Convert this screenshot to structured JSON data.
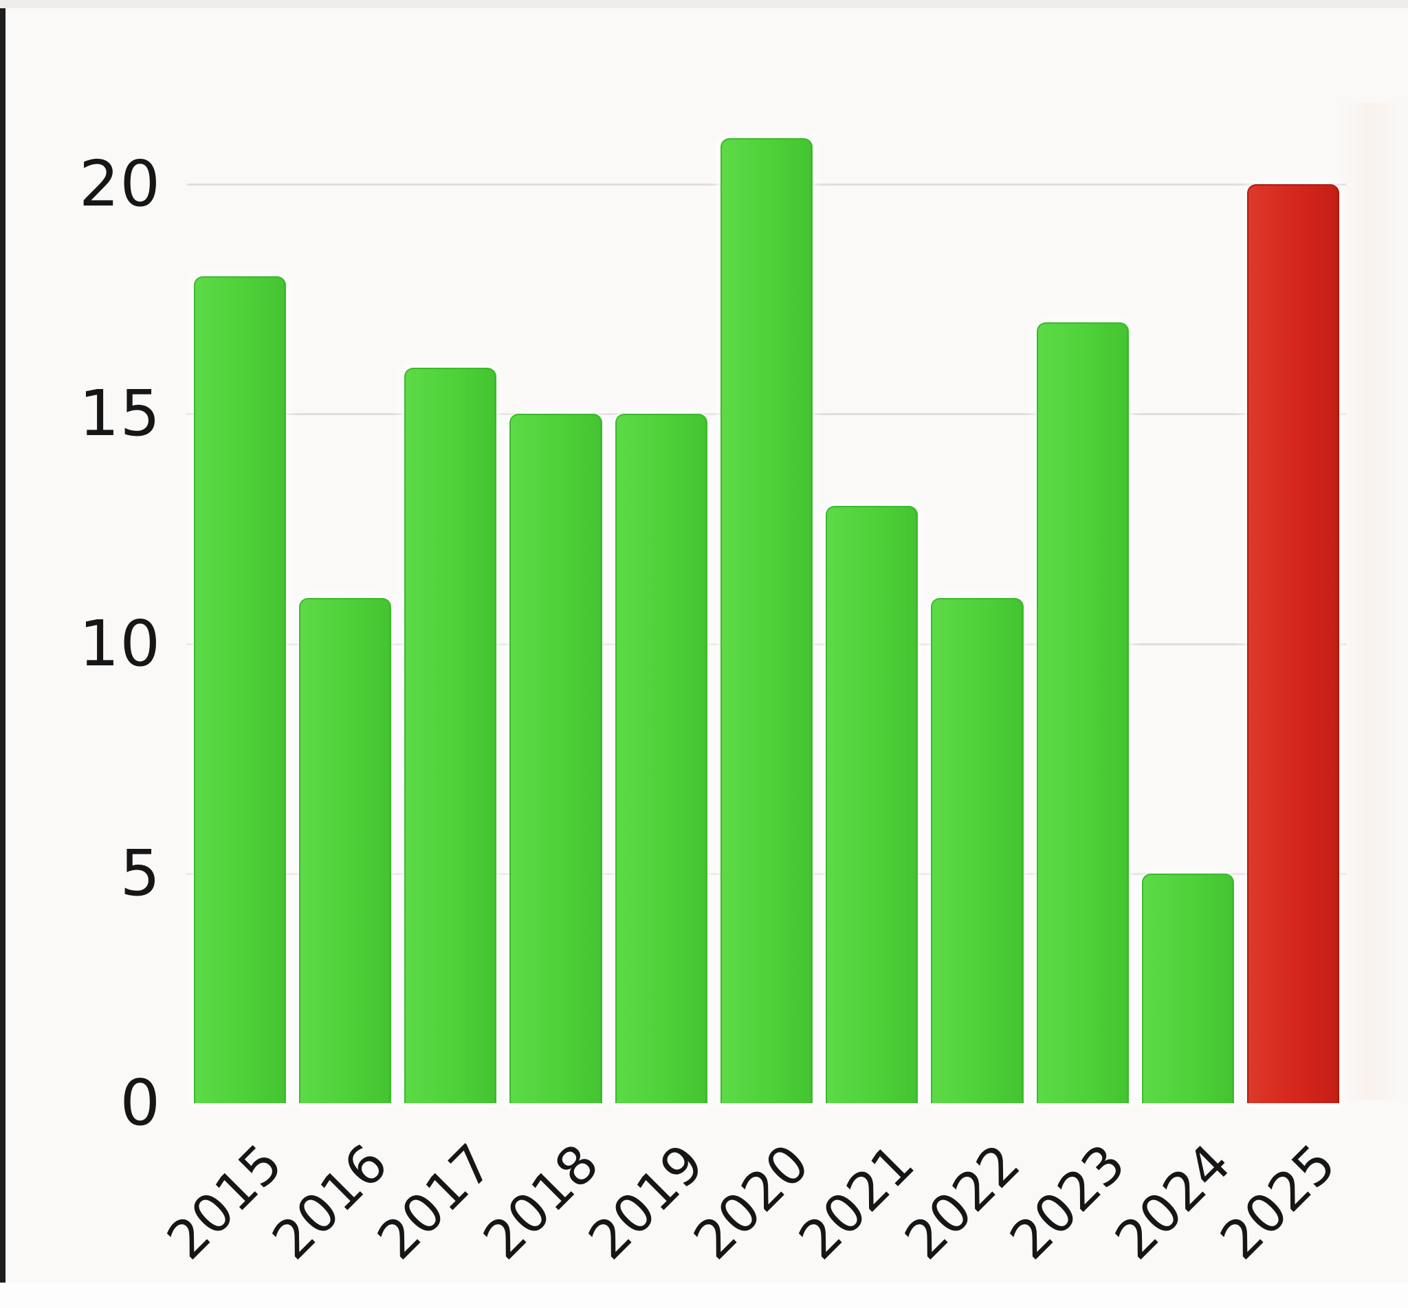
{
  "chart_data": {
    "type": "bar",
    "title": "",
    "xlabel": "",
    "ylabel": "",
    "categories": [
      "2015",
      "2016",
      "2017",
      "2018",
      "2019",
      "2020",
      "2021",
      "2022",
      "2023",
      "2024",
      "2025"
    ],
    "values": [
      18,
      11,
      16,
      15,
      15,
      21,
      13,
      11,
      17,
      5,
      20
    ],
    "yticks": [
      0,
      5,
      10,
      15,
      20
    ],
    "ylim": [
      0,
      21.5
    ],
    "grid": "horizontal",
    "legend": "none",
    "xtick_rotation_deg": 45,
    "highlight_category": "2025",
    "bar_color_default": "#4ed139",
    "bar_color_highlight": "#d5261d"
  },
  "colors": {
    "background": "#faf9f8",
    "top_strip": "#eeedec",
    "left_edge_line": "#1d1d1d",
    "gridline": "#e0ddda",
    "text": "#161616",
    "bar_green": "#4ed139",
    "bar_green_edge": "#3cb92c",
    "bar_red": "#d5261d",
    "bar_red_edge": "#b21a12"
  }
}
